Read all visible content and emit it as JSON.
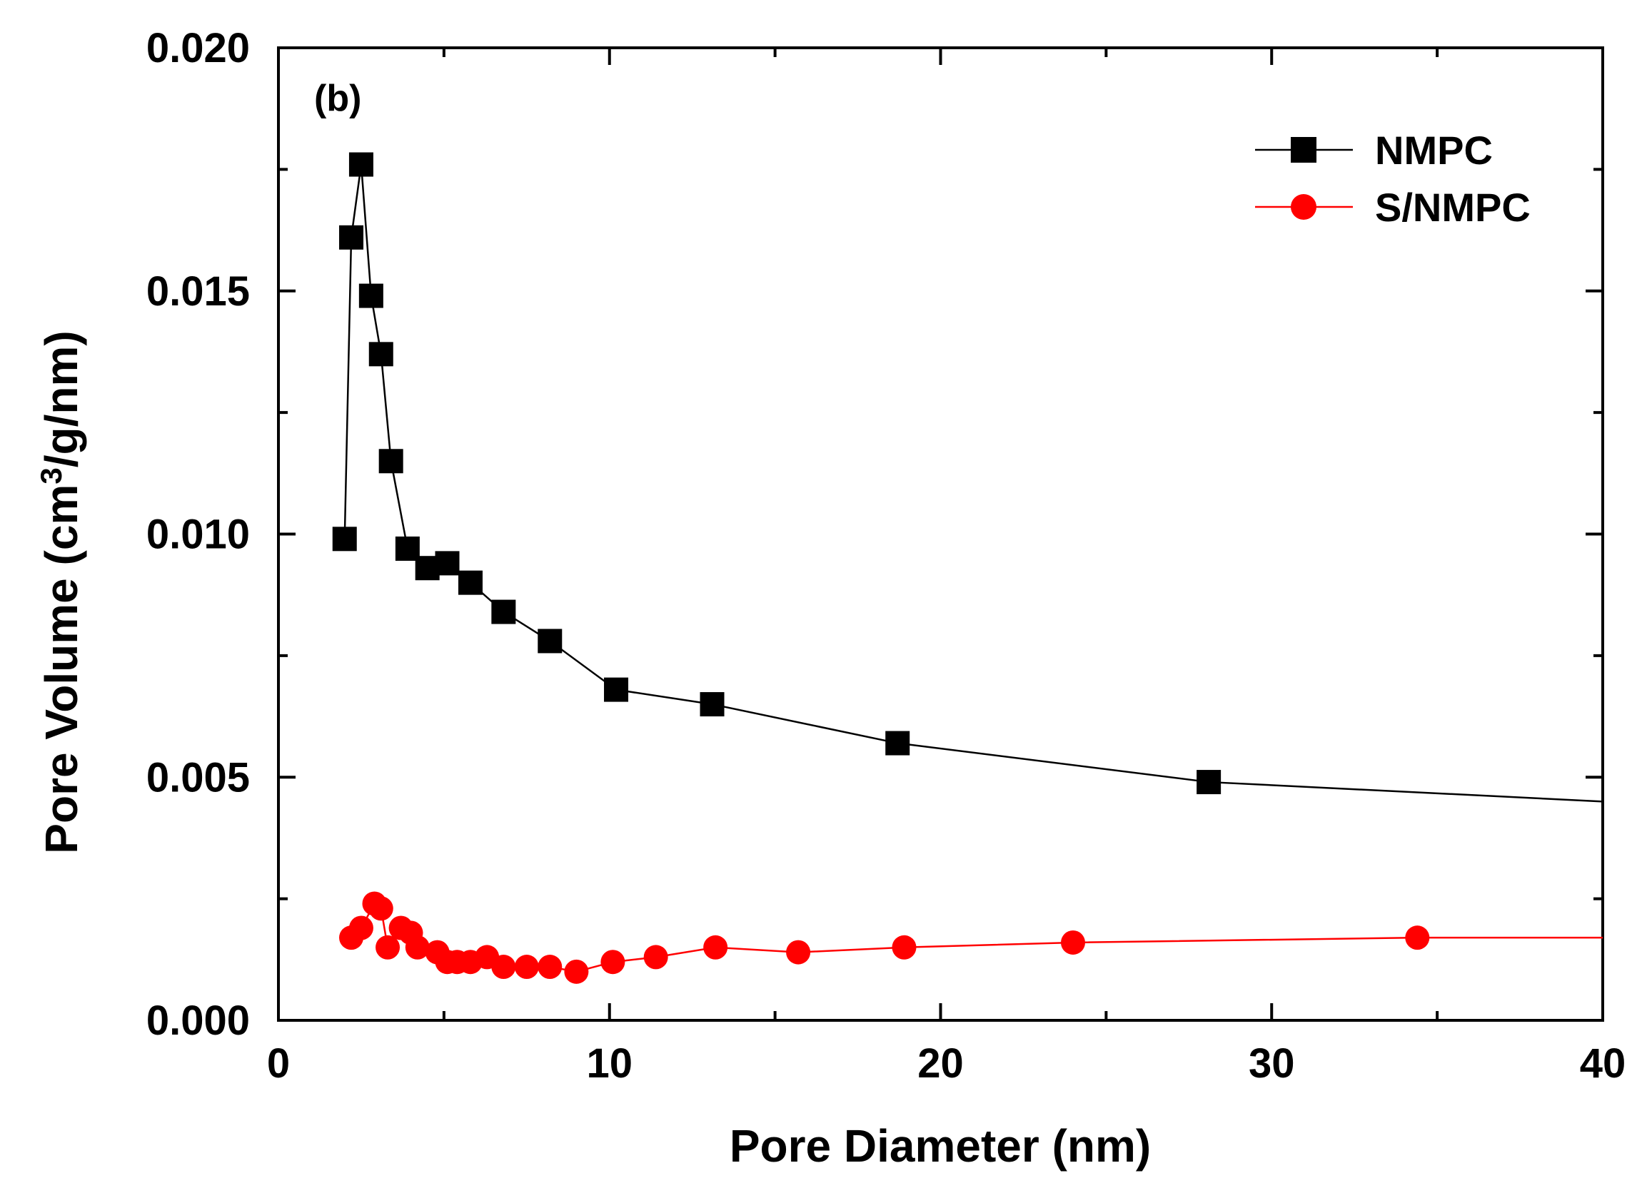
{
  "chart_data": {
    "type": "line",
    "panel_label": "(b)",
    "title": "",
    "xlabel": "Pore Diameter (nm)",
    "ylabel_main": "Pore Volume (cm",
    "ylabel_sup": "3",
    "ylabel_tail": "/g/nm)",
    "xlim": [
      0,
      40
    ],
    "ylim": [
      0,
      0.02
    ],
    "x_ticks": [
      0,
      10,
      20,
      30,
      40
    ],
    "x_tick_labels": [
      "0",
      "10",
      "20",
      "30",
      "40"
    ],
    "y_ticks": [
      0,
      0.005,
      0.01,
      0.015,
      0.02
    ],
    "y_tick_labels": [
      "0.000",
      "0.005",
      "0.010",
      "0.015",
      "0.020"
    ],
    "legend_position": "top-right",
    "series": [
      {
        "name": "NMPC",
        "color": "#000000",
        "marker": "square",
        "x": [
          2.0,
          2.2,
          2.5,
          2.8,
          3.1,
          3.4,
          3.9,
          4.5,
          5.1,
          5.8,
          6.8,
          8.2,
          10.2,
          13.1,
          18.7,
          28.1
        ],
        "y": [
          0.0099,
          0.0161,
          0.0176,
          0.0149,
          0.0137,
          0.0115,
          0.0097,
          0.0093,
          0.0094,
          0.009,
          0.0084,
          0.0078,
          0.0068,
          0.0065,
          0.0057,
          0.0049
        ],
        "line_end": [
          40,
          0.0045
        ]
      },
      {
        "name": "S/NMPC",
        "color": "#ff0000",
        "marker": "circle",
        "x": [
          2.2,
          2.5,
          2.9,
          3.1,
          3.3,
          3.7,
          4.0,
          4.2,
          4.8,
          5.1,
          5.4,
          5.8,
          6.3,
          6.8,
          7.5,
          8.2,
          9.0,
          10.1,
          11.4,
          13.2,
          15.7,
          18.9,
          24.0,
          34.4
        ],
        "y": [
          0.0017,
          0.0019,
          0.0024,
          0.0023,
          0.0015,
          0.0019,
          0.0018,
          0.0015,
          0.0014,
          0.0012,
          0.0012,
          0.0012,
          0.0013,
          0.0011,
          0.0011,
          0.0011,
          0.001,
          0.0012,
          0.0013,
          0.0015,
          0.0014,
          0.0015,
          0.0016,
          0.0017
        ],
        "line_end": [
          40,
          0.0017
        ]
      }
    ]
  }
}
